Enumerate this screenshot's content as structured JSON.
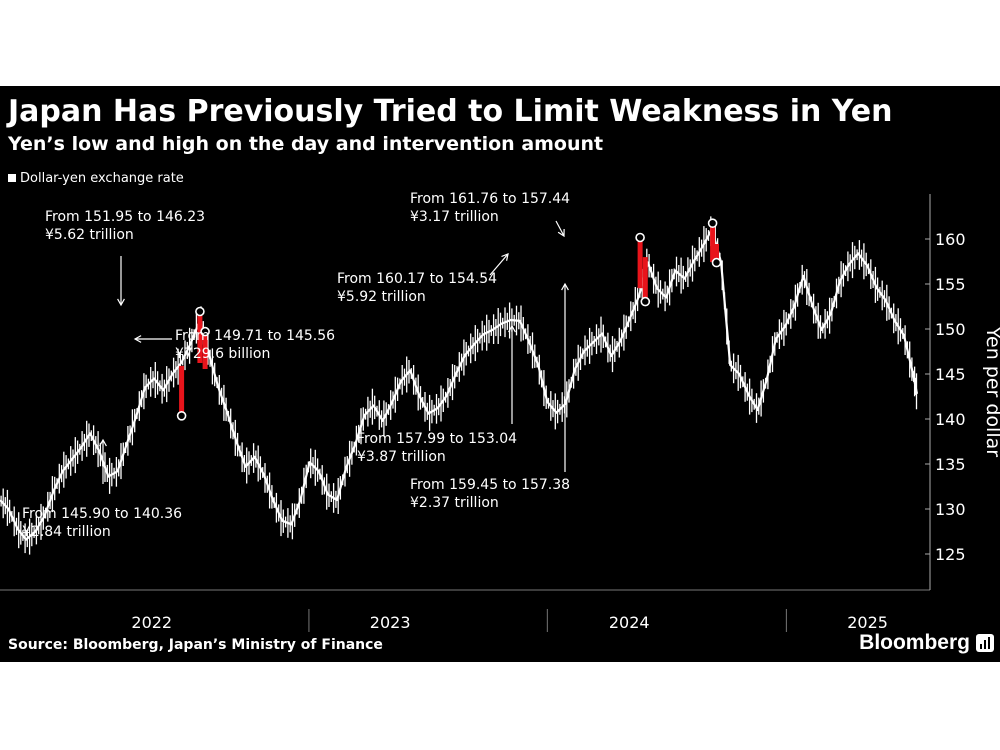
{
  "chart_data": {
    "type": "line",
    "title": "Japan Has Previously Tried to Limit Weakness in Yen",
    "subtitle": "Yen’s low and high on the day and intervention amount",
    "ylabel": "Yen per dollar",
    "ylim": [
      121,
      165
    ],
    "y_ticks": [
      125,
      130,
      135,
      140,
      145,
      150,
      155,
      160
    ],
    "x_range": [
      "2021-09-15",
      "2025-07-20"
    ],
    "x_tick_labels": [
      {
        "label": "2022",
        "date": "2022-07-01"
      },
      {
        "label": "2023",
        "date": "2023-07-01"
      },
      {
        "label": "2024",
        "date": "2024-07-01"
      },
      {
        "label": "2025",
        "date": "2025-07-01"
      }
    ],
    "year_separators": [
      "2023-01-01",
      "2024-01-01",
      "2025-01-01"
    ],
    "series": [
      {
        "name": "Dollar-yen exchange rate",
        "color": "#ffffff",
        "points": [
          [
            "2021-09-15",
            131.0
          ],
          [
            "2021-09-28",
            130.0
          ],
          [
            "2021-10-12",
            127.8
          ],
          [
            "2021-10-25",
            126.6
          ],
          [
            "2021-11-08",
            127.5
          ],
          [
            "2021-11-22",
            129.2
          ],
          [
            "2021-12-06",
            132.0
          ],
          [
            "2021-12-20",
            134.2
          ],
          [
            "2022-01-03",
            135.5
          ],
          [
            "2022-01-17",
            136.8
          ],
          [
            "2022-01-31",
            138.4
          ],
          [
            "2022-02-14",
            136.4
          ],
          [
            "2022-02-28",
            133.6
          ],
          [
            "2022-03-14",
            134.2
          ],
          [
            "2022-03-28",
            137.2
          ],
          [
            "2022-04-11",
            140.2
          ],
          [
            "2022-04-25",
            143.5
          ],
          [
            "2022-05-09",
            144.5
          ],
          [
            "2022-05-23",
            143.2
          ],
          [
            "2022-06-06",
            145.0
          ],
          [
            "2022-06-20",
            146.3
          ],
          [
            "2022-07-04",
            148.4
          ],
          [
            "2022-07-18",
            151.0
          ],
          [
            "2022-08-01",
            147.2
          ],
          [
            "2022-08-15",
            143.6
          ],
          [
            "2022-08-29",
            140.7
          ],
          [
            "2022-09-12",
            137.5
          ],
          [
            "2022-09-26",
            134.7
          ],
          [
            "2022-10-10",
            135.8
          ],
          [
            "2022-10-24",
            133.8
          ],
          [
            "2022-11-07",
            131.0
          ],
          [
            "2022-11-21",
            128.7
          ],
          [
            "2022-12-05",
            128.3
          ],
          [
            "2022-12-19",
            131.0
          ],
          [
            "2023-01-02",
            135.2
          ],
          [
            "2023-01-16",
            134.2
          ],
          [
            "2023-01-30",
            131.6
          ],
          [
            "2023-02-13",
            131.0
          ],
          [
            "2023-02-27",
            134.6
          ],
          [
            "2023-03-13",
            137.2
          ],
          [
            "2023-03-27",
            140.4
          ],
          [
            "2023-04-10",
            141.5
          ],
          [
            "2023-04-24",
            139.8
          ],
          [
            "2023-05-08",
            141.8
          ],
          [
            "2023-05-22",
            144.2
          ],
          [
            "2023-06-05",
            145.4
          ],
          [
            "2023-06-19",
            142.6
          ],
          [
            "2023-07-03",
            140.6
          ],
          [
            "2023-07-17",
            141.2
          ],
          [
            "2023-07-31",
            142.6
          ],
          [
            "2023-08-14",
            145.0
          ],
          [
            "2023-08-28",
            147.1
          ],
          [
            "2023-09-11",
            148.3
          ],
          [
            "2023-09-25",
            149.4
          ],
          [
            "2023-10-09",
            149.9
          ],
          [
            "2023-10-23",
            150.6
          ],
          [
            "2023-11-06",
            151.0
          ],
          [
            "2023-11-20",
            150.9
          ],
          [
            "2023-12-04",
            148.6
          ],
          [
            "2023-12-18",
            146.0
          ],
          [
            "2024-01-01",
            141.9
          ],
          [
            "2024-01-15",
            140.7
          ],
          [
            "2024-01-29",
            141.7
          ],
          [
            "2024-02-12",
            145.5
          ],
          [
            "2024-02-26",
            147.5
          ],
          [
            "2024-03-11",
            148.5
          ],
          [
            "2024-03-25",
            149.5
          ],
          [
            "2024-04-08",
            147.0
          ],
          [
            "2024-04-22",
            148.7
          ],
          [
            "2024-05-06",
            151.1
          ],
          [
            "2024-05-20",
            153.6
          ],
          [
            "2024-06-03",
            157.4
          ],
          [
            "2024-06-17",
            154.5
          ],
          [
            "2024-07-01",
            153.5
          ],
          [
            "2024-07-15",
            156.5
          ],
          [
            "2024-07-29",
            155.6
          ],
          [
            "2024-08-12",
            157.5
          ],
          [
            "2024-08-26",
            159.2
          ],
          [
            "2024-09-09",
            161.1
          ],
          [
            "2024-09-23",
            157.4
          ],
          [
            "2024-10-07",
            146.0
          ],
          [
            "2024-10-21",
            145.0
          ],
          [
            "2024-11-04",
            142.7
          ],
          [
            "2024-11-18",
            141.0
          ],
          [
            "2024-12-02",
            144.4
          ],
          [
            "2024-12-16",
            148.9
          ],
          [
            "2024-12-30",
            150.3
          ],
          [
            "2025-01-13",
            152.5
          ],
          [
            "2025-01-27",
            155.9
          ],
          [
            "2025-02-10",
            152.6
          ],
          [
            "2025-02-24",
            149.9
          ],
          [
            "2025-03-10",
            151.7
          ],
          [
            "2025-03-24",
            155.3
          ],
          [
            "2025-04-07",
            157.2
          ],
          [
            "2025-04-21",
            158.4
          ],
          [
            "2025-05-05",
            157.0
          ],
          [
            "2025-05-19",
            154.6
          ],
          [
            "2025-06-02",
            153.2
          ],
          [
            "2025-06-16",
            150.9
          ],
          [
            "2025-06-30",
            149.3
          ],
          [
            "2025-07-14",
            145.0
          ],
          [
            "2025-07-20",
            142.8
          ]
        ]
      }
    ],
    "interventions": [
      {
        "date": "2022-06-20",
        "from": 145.9,
        "to": 140.36,
        "amount": "¥2.84 trillion",
        "label_line1": "From 145.90 to 140.36",
        "label_line2": "¥2.84 trillion"
      },
      {
        "date": "2022-07-18",
        "from": 151.95,
        "to": 146.23,
        "amount": "¥5.62 trillion",
        "label_line1": "From 151.95 to 146.23",
        "label_line2": "¥5.62 trillion"
      },
      {
        "date": "2022-07-26",
        "from": 149.71,
        "to": 145.56,
        "amount": "¥729.6 billion",
        "label_line1": "From 149.71 to 145.56",
        "label_line2": "¥729.6 billion"
      },
      {
        "date": "2024-05-22",
        "from": 160.17,
        "to": 154.54,
        "amount": "¥5.92 trillion",
        "label_line1": "From 160.17 to 154.54",
        "label_line2": "¥5.92 trillion"
      },
      {
        "date": "2024-05-30",
        "from": 157.99,
        "to": 153.04,
        "amount": "¥3.87 trillion",
        "label_line1": "From 157.99 to 153.04",
        "label_line2": "¥3.87 trillion"
      },
      {
        "date": "2024-09-10",
        "from": 161.76,
        "to": 157.44,
        "amount": "¥3.17 trillion",
        "label_line1": "From 161.76 to 157.44",
        "label_line2": "¥3.17 trillion"
      },
      {
        "date": "2024-09-16",
        "from": 159.45,
        "to": 157.38,
        "amount": "¥2.37 trillion",
        "label_line1": "From 159.45 to 157.38",
        "label_line2": "¥2.37 trillion"
      }
    ],
    "intervention_color": "#e8141b",
    "grid": false,
    "legend_position": "top-left"
  },
  "footer": {
    "source": "Source: Bloomberg, Japan’s Ministry of Finance",
    "brand": "Bloomberg"
  }
}
